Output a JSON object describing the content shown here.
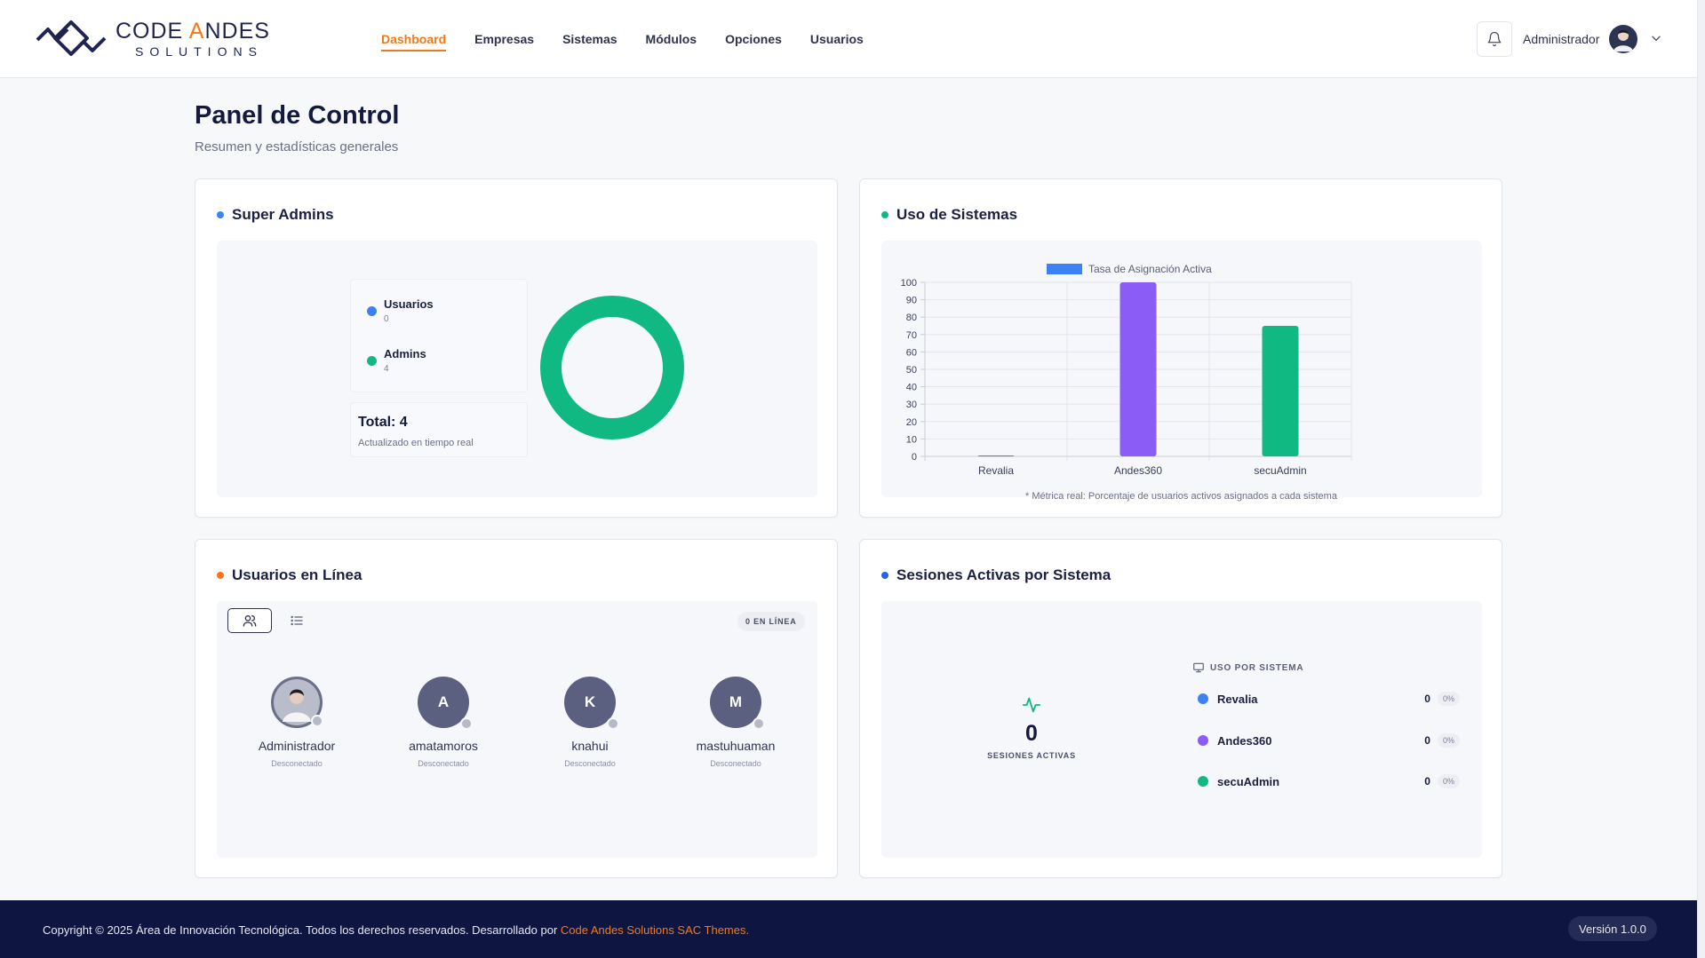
{
  "brand": {
    "name_part1": "CODE ",
    "name_accent": "A",
    "name_part2": "NDES",
    "tagline": "SOLUTIONS",
    "accent_color": "#f07a1a",
    "primary_color": "#1f2450"
  },
  "nav": {
    "items": [
      {
        "label": "Dashboard",
        "active": true
      },
      {
        "label": "Empresas",
        "active": false
      },
      {
        "label": "Sistemas",
        "active": false
      },
      {
        "label": "Módulos",
        "active": false
      },
      {
        "label": "Opciones",
        "active": false
      },
      {
        "label": "Usuarios",
        "active": false
      }
    ]
  },
  "header": {
    "bell_icon": "bell-icon",
    "user_name": "Administrador",
    "dropdown_icon": "chevron-down-icon"
  },
  "page": {
    "title": "Panel de Control",
    "subtitle": "Resumen y estadísticas generales"
  },
  "super_admins": {
    "title": "Super Admins",
    "dot_color": "#3b82f6",
    "legend": [
      {
        "label": "Usuarios",
        "value": "0",
        "color": "#3b82f6"
      },
      {
        "label": "Admins",
        "value": "4",
        "color": "#10b981"
      }
    ],
    "total_label": "Total: 4",
    "total_sub": "Actualizado en tiempo real"
  },
  "uso_sistemas": {
    "title": "Uso de Sistemas",
    "dot_color": "#10b981",
    "note": "* Métrica real: Porcentaje de usuarios activos asignados a cada sistema"
  },
  "chart_data": {
    "type": "bar",
    "legend": [
      "Tasa de Asignación Activa"
    ],
    "categories": [
      "Revalia",
      "Andes360",
      "secuAdmin"
    ],
    "values": [
      0,
      100,
      75
    ],
    "colors": [
      "#3b82f6",
      "#8b5cf6",
      "#10b981"
    ],
    "ylim": [
      0,
      100
    ],
    "yticks": [
      "0",
      "10",
      "20",
      "30",
      "40",
      "50",
      "60",
      "70",
      "80",
      "90",
      "100"
    ],
    "grid": true,
    "legend_position": "top"
  },
  "online_users": {
    "title": "Usuarios en Línea",
    "dot_color": "#f97316",
    "badge": "0 EN LÍNEA",
    "users": [
      {
        "name": "Administrador",
        "initial": "",
        "status": "Desconectado",
        "photo": true
      },
      {
        "name": "amatamoros",
        "initial": "A",
        "status": "Desconectado",
        "photo": false
      },
      {
        "name": "knahui",
        "initial": "K",
        "status": "Desconectado",
        "photo": false
      },
      {
        "name": "mastuhuaman",
        "initial": "M",
        "status": "Desconectado",
        "photo": false
      }
    ]
  },
  "sesiones": {
    "title": "Sesiones Activas por Sistema",
    "dot_color": "#2563eb",
    "count": "0",
    "count_label": "SESIONES ACTIVAS",
    "systems_header": "USO POR SISTEMA",
    "systems": [
      {
        "name": "Revalia",
        "count": "0",
        "pct": "0%",
        "color": "#3b82f6"
      },
      {
        "name": "Andes360",
        "count": "0",
        "pct": "0%",
        "color": "#8b5cf6"
      },
      {
        "name": "secuAdmin",
        "count": "0",
        "pct": "0%",
        "color": "#10b981"
      }
    ]
  },
  "footer": {
    "copyright": "Copyright © 2025 Área de Innovación Tecnológica. Todos los derechos reservados. Desarrollado por ",
    "link": "Code Andes Solutions SAC Themes.",
    "version": "Versión 1.0.0"
  }
}
